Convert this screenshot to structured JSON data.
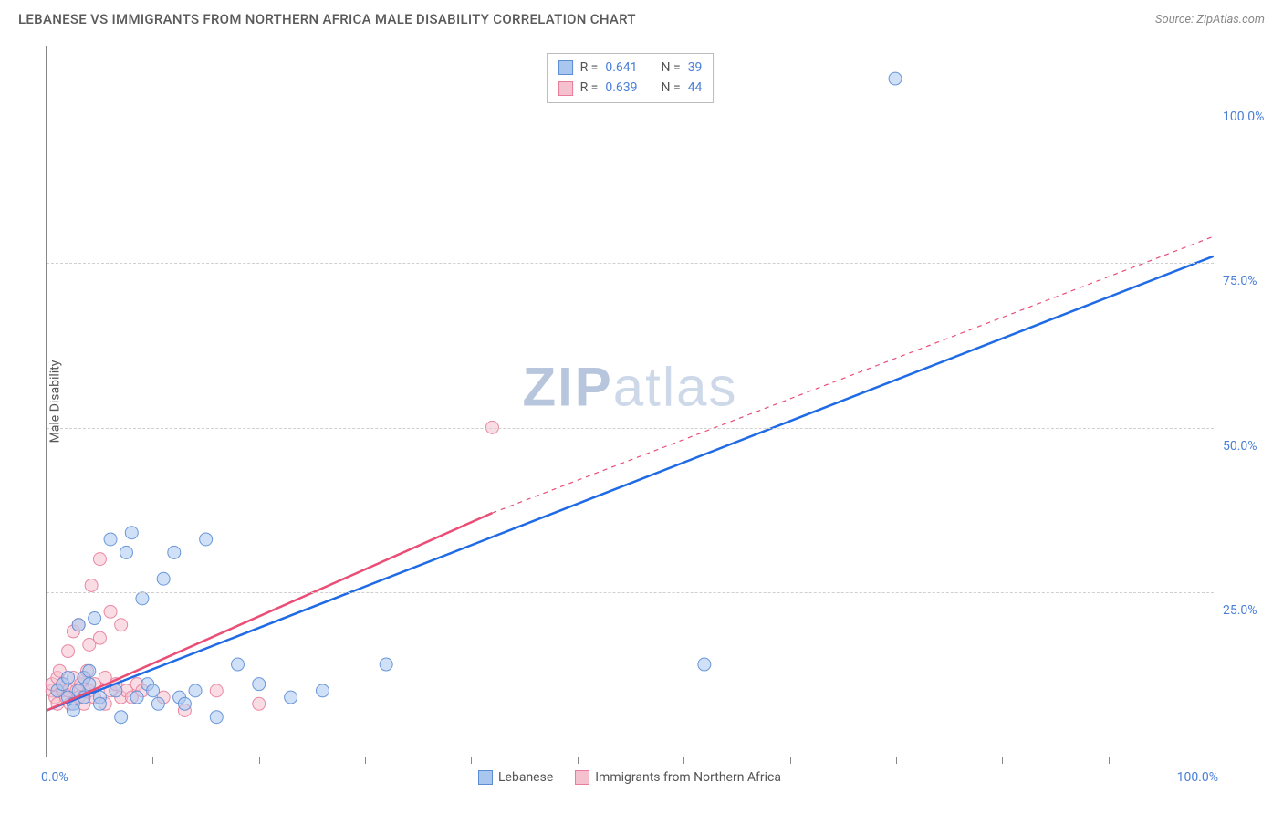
{
  "header": {
    "title": "LEBANESE VS IMMIGRANTS FROM NORTHERN AFRICA MALE DISABILITY CORRELATION CHART",
    "source": "Source: ZipAtlas.com"
  },
  "watermark": {
    "pre": "ZIP",
    "post": "atlas"
  },
  "axes": {
    "y_title": "Male Disability",
    "x_min_label": "0.0%",
    "x_max_label": "100.0%",
    "y_ticks": [
      {
        "pct": 25,
        "label": "25.0%"
      },
      {
        "pct": 50,
        "label": "50.0%"
      },
      {
        "pct": 75,
        "label": "75.0%"
      },
      {
        "pct": 100,
        "label": "100.0%"
      }
    ],
    "x_tick_positions_pct": [
      0,
      10,
      20,
      30,
      40,
      50,
      60,
      70,
      80,
      90,
      100
    ],
    "xlim": [
      0,
      110
    ],
    "ylim": [
      0,
      108
    ]
  },
  "styling": {
    "background": "#ffffff",
    "grid_color": "#d0d0d0",
    "axis_color": "#888888",
    "tick_label_color": "#4a7fd8",
    "text_color": "#555555",
    "title_fontsize": 15,
    "label_fontsize": 14,
    "point_radius": 7,
    "point_opacity": 0.55,
    "point_stroke_opacity": 0.9,
    "trend_line_width": 2.5,
    "trend_dash_width": 1.2
  },
  "series": {
    "a": {
      "label": "Lebanese",
      "color_fill": "#a9c6ee",
      "color_stroke": "#5b8dd6",
      "line_color": "#1f6ae5",
      "R": "0.641",
      "N": "39",
      "trend": {
        "x1": 0,
        "y1": 7,
        "x2": 110,
        "y2": 76,
        "dash_to_x": 110
      },
      "points": [
        [
          1,
          10
        ],
        [
          1.5,
          11
        ],
        [
          2,
          9
        ],
        [
          2,
          12
        ],
        [
          2.5,
          8
        ],
        [
          2.5,
          7
        ],
        [
          3,
          20
        ],
        [
          3,
          10
        ],
        [
          3.5,
          12
        ],
        [
          3.5,
          9
        ],
        [
          4,
          11
        ],
        [
          4,
          13
        ],
        [
          4.5,
          21
        ],
        [
          5,
          9
        ],
        [
          5,
          8
        ],
        [
          6,
          33
        ],
        [
          6.5,
          10
        ],
        [
          7,
          6
        ],
        [
          7.5,
          31
        ],
        [
          8,
          34
        ],
        [
          8.5,
          9
        ],
        [
          9,
          24
        ],
        [
          9.5,
          11
        ],
        [
          10,
          10
        ],
        [
          10.5,
          8
        ],
        [
          11,
          27
        ],
        [
          12,
          31
        ],
        [
          12.5,
          9
        ],
        [
          13,
          8
        ],
        [
          14,
          10
        ],
        [
          15,
          33
        ],
        [
          16,
          6
        ],
        [
          18,
          14
        ],
        [
          20,
          11
        ],
        [
          23,
          9
        ],
        [
          26,
          10
        ],
        [
          32,
          14
        ],
        [
          62,
          14
        ],
        [
          80,
          103
        ]
      ]
    },
    "b": {
      "label": "Immigrants from Northern Africa",
      "color_fill": "#f6c1ce",
      "color_stroke": "#e87c9a",
      "line_color": "#ea4d75",
      "R": "0.639",
      "N": "44",
      "trend": {
        "x1": 0,
        "y1": 7,
        "x2": 42,
        "y2": 37,
        "dash_to_x": 110,
        "dash_to_y": 79
      },
      "points": [
        [
          0.5,
          10
        ],
        [
          0.5,
          11
        ],
        [
          0.8,
          9
        ],
        [
          1,
          12
        ],
        [
          1,
          8
        ],
        [
          1.2,
          13
        ],
        [
          1.5,
          10
        ],
        [
          1.5,
          11
        ],
        [
          1.8,
          9
        ],
        [
          2,
          16
        ],
        [
          2,
          10
        ],
        [
          2.2,
          8
        ],
        [
          2.5,
          12
        ],
        [
          2.5,
          19
        ],
        [
          2.8,
          10
        ],
        [
          3,
          9
        ],
        [
          3,
          20
        ],
        [
          3.2,
          11
        ],
        [
          3.5,
          8
        ],
        [
          3.5,
          12
        ],
        [
          3.8,
          13
        ],
        [
          4,
          10
        ],
        [
          4,
          17
        ],
        [
          4.2,
          26
        ],
        [
          4.5,
          9
        ],
        [
          4.5,
          11
        ],
        [
          5,
          18
        ],
        [
          5,
          30
        ],
        [
          5.5,
          8
        ],
        [
          5.5,
          12
        ],
        [
          6,
          10
        ],
        [
          6,
          22
        ],
        [
          6.5,
          11
        ],
        [
          7,
          9
        ],
        [
          7,
          20
        ],
        [
          7.5,
          10
        ],
        [
          8,
          9
        ],
        [
          8.5,
          11
        ],
        [
          9,
          10
        ],
        [
          11,
          9
        ],
        [
          13,
          7
        ],
        [
          16,
          10
        ],
        [
          20,
          8
        ],
        [
          42,
          50
        ]
      ]
    }
  },
  "legend_top": {
    "r_label": "R =",
    "n_label": "N ="
  }
}
